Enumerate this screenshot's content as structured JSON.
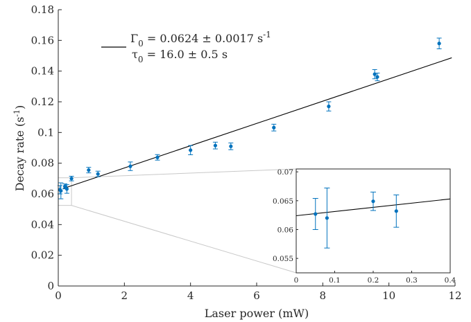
{
  "chart_data": {
    "type": "scatter",
    "xlabel": "Laser power (mW)",
    "ylabel": "Decay rate (s",
    "ylabel_sup": "-1",
    "ylabel_close": ")",
    "xlim": [
      0,
      12
    ],
    "ylim": [
      0,
      0.18
    ],
    "xticks": [
      "0",
      "2",
      "4",
      "6",
      "8",
      "10",
      "12"
    ],
    "yticks": [
      "0",
      "0.02",
      "0.04",
      "0.06",
      "0.08",
      "0.1",
      "0.12",
      "0.14",
      "0.16",
      "0.18"
    ],
    "grid": false,
    "legend": {
      "placement": "top-left",
      "line1_main": "Γ",
      "line1_sub": "0",
      "line1_value": " = 0.0624 ± 0.0017 s",
      "line1_sup": "-1",
      "line2_main": "τ",
      "line2_sub": "0",
      "line2_value": " = 16.0 ± 0.5 s"
    },
    "colors": {
      "points": "#0072BD",
      "fit": "#000000",
      "axes": "#262626",
      "zoom_lines": "#c8c8c8"
    },
    "fit": {
      "intercept": 0.0624,
      "slope": 0.00725
    },
    "points": [
      {
        "x": 0.05,
        "y": 0.0627,
        "err": 0.0027
      },
      {
        "x": 0.08,
        "y": 0.062,
        "err": 0.0052
      },
      {
        "x": 0.2,
        "y": 0.0649,
        "err": 0.0016
      },
      {
        "x": 0.26,
        "y": 0.0632,
        "err": 0.0028
      },
      {
        "x": 0.4,
        "y": 0.07,
        "err": 0.0015
      },
      {
        "x": 0.92,
        "y": 0.0755,
        "err": 0.0018
      },
      {
        "x": 1.2,
        "y": 0.073,
        "err": 0.0018
      },
      {
        "x": 2.18,
        "y": 0.078,
        "err": 0.0028
      },
      {
        "x": 3.0,
        "y": 0.0838,
        "err": 0.0018
      },
      {
        "x": 4.0,
        "y": 0.0885,
        "err": 0.003
      },
      {
        "x": 4.75,
        "y": 0.0915,
        "err": 0.0022
      },
      {
        "x": 5.22,
        "y": 0.091,
        "err": 0.0022
      },
      {
        "x": 6.52,
        "y": 0.1032,
        "err": 0.0022
      },
      {
        "x": 8.18,
        "y": 0.117,
        "err": 0.003
      },
      {
        "x": 9.57,
        "y": 0.138,
        "err": 0.003
      },
      {
        "x": 9.65,
        "y": 0.1362,
        "err": 0.0025
      },
      {
        "x": 11.52,
        "y": 0.158,
        "err": 0.0035
      }
    ],
    "inset": {
      "xlim": [
        0,
        0.4
      ],
      "ylim": [
        0.0525,
        0.0705
      ],
      "xticks": [
        "0",
        "0.1",
        "0.2",
        "0.3",
        "0.4"
      ],
      "yticks": [
        "0.055",
        "0.06",
        "0.065",
        "0.07"
      ],
      "points": [
        {
          "x": 0.05,
          "y": 0.0627,
          "err": 0.0027
        },
        {
          "x": 0.08,
          "y": 0.062,
          "err": 0.0052
        },
        {
          "x": 0.2,
          "y": 0.0649,
          "err": 0.0016
        },
        {
          "x": 0.26,
          "y": 0.0632,
          "err": 0.0028
        }
      ]
    }
  }
}
